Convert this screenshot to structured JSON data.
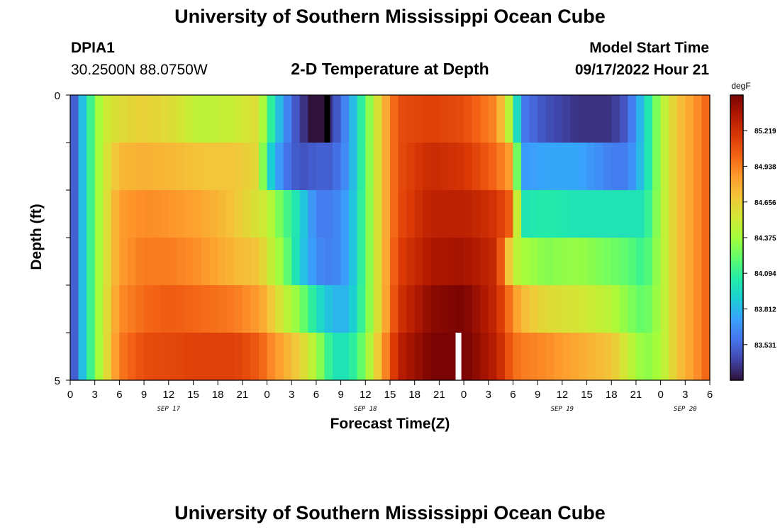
{
  "title": "University of Southern Mississippi Ocean Cube",
  "title_bottom": "University of Southern Mississippi Ocean Cube",
  "station": {
    "id": "DPIA1",
    "coords": "30.2500N  88.0750W"
  },
  "model": {
    "label": "Model Start Time",
    "time": "09/17/2022 Hour 21"
  },
  "chart_data": {
    "type": "heatmap",
    "title": "2-D Temperature at Depth",
    "xlabel": "Forecast Time(Z)",
    "ylabel": "Depth (ft)",
    "x_start_hour": 0,
    "x_end_hour": 78,
    "x_hour_step": 1,
    "ylim": [
      0,
      5
    ],
    "y_ticks": [
      "0",
      "5"
    ],
    "y_tick_values": [
      0,
      5
    ],
    "x_tick_labels": [
      "0",
      "3",
      "6",
      "9",
      "12",
      "15",
      "18",
      "21",
      "0",
      "3",
      "6",
      "9",
      "12",
      "15",
      "18",
      "21",
      "0",
      "3",
      "6",
      "9",
      "12",
      "15",
      "18",
      "21",
      "0",
      "3",
      "6"
    ],
    "day_labels": [
      {
        "label": "SEP 17",
        "hour": 12
      },
      {
        "label": "SEP 18",
        "hour": 36
      },
      {
        "label": "SEP 19",
        "hour": 60
      },
      {
        "label": "SEP 20",
        "hour": 75
      }
    ],
    "depth_levels": [
      0,
      1,
      2,
      3,
      4,
      5
    ],
    "profiles": [
      {
        "hour": 0,
        "temps": [
          83.33,
          83.33,
          83.33,
          83.33,
          83.33,
          83.33
        ]
      },
      {
        "hour": 2,
        "temps": [
          84.0,
          84.0,
          84.0,
          84.0,
          84.0,
          84.0
        ]
      },
      {
        "hour": 4,
        "temps": [
          84.5,
          84.5,
          84.5,
          84.5,
          84.5,
          84.5
        ]
      },
      {
        "hour": 6,
        "temps": [
          84.6,
          84.75,
          84.85,
          84.85,
          84.9,
          84.95
        ]
      },
      {
        "hour": 9,
        "temps": [
          84.65,
          84.78,
          84.9,
          84.95,
          85.0,
          85.1
        ]
      },
      {
        "hour": 12,
        "temps": [
          84.6,
          84.75,
          84.88,
          84.95,
          85.05,
          85.12
        ]
      },
      {
        "hour": 16,
        "temps": [
          84.45,
          84.7,
          84.82,
          84.88,
          85.0,
          85.15
        ]
      },
      {
        "hour": 20,
        "temps": [
          84.5,
          84.7,
          84.7,
          84.75,
          84.95,
          85.15
        ]
      },
      {
        "hour": 23,
        "temps": [
          84.6,
          84.6,
          84.55,
          84.7,
          84.85,
          85.05
        ]
      },
      {
        "hour": 24,
        "temps": [
          84.2,
          84.0,
          84.5,
          84.55,
          84.75,
          84.95
        ]
      },
      {
        "hour": 26,
        "temps": [
          83.7,
          83.6,
          84.2,
          84.3,
          84.5,
          84.8
        ]
      },
      {
        "hour": 28,
        "temps": [
          83.4,
          83.45,
          83.95,
          83.9,
          84.3,
          84.65
        ]
      },
      {
        "hour": 30,
        "temps": [
          83.2,
          83.5,
          83.6,
          83.65,
          84.0,
          84.4
        ]
      },
      {
        "hour": 32,
        "temps": [
          83.4,
          83.5,
          83.6,
          83.6,
          83.8,
          84.0
        ]
      },
      {
        "hour": 34,
        "temps": [
          83.7,
          83.7,
          83.75,
          83.75,
          83.8,
          84.0
        ]
      },
      {
        "hour": 36,
        "temps": [
          84.2,
          84.2,
          84.2,
          84.2,
          84.2,
          84.3
        ]
      },
      {
        "hour": 38,
        "temps": [
          84.7,
          84.7,
          84.7,
          84.7,
          84.7,
          84.8
        ]
      },
      {
        "hour": 40,
        "temps": [
          85.1,
          85.1,
          85.1,
          85.15,
          85.2,
          85.3
        ]
      },
      {
        "hour": 44,
        "temps": [
          85.15,
          85.25,
          85.3,
          85.35,
          85.45,
          85.5
        ]
      },
      {
        "hour": 48,
        "temps": [
          85.1,
          85.2,
          85.3,
          85.38,
          85.5,
          85.52
        ]
      },
      {
        "hour": 52,
        "temps": [
          84.9,
          85.0,
          85.2,
          85.25,
          85.25,
          85.3
        ]
      },
      {
        "hour": 54,
        "temps": [
          84.3,
          84.8,
          85.0,
          84.5,
          84.9,
          85.0
        ]
      },
      {
        "hour": 55,
        "temps": [
          83.6,
          83.7,
          84.0,
          84.4,
          84.75,
          84.95
        ]
      },
      {
        "hour": 58,
        "temps": [
          83.45,
          83.75,
          84.05,
          84.3,
          84.6,
          84.9
        ]
      },
      {
        "hour": 62,
        "temps": [
          83.35,
          83.75,
          84.0,
          84.35,
          84.55,
          84.8
        ]
      },
      {
        "hour": 66,
        "temps": [
          83.35,
          83.6,
          84.0,
          84.25,
          84.45,
          84.7
        ]
      },
      {
        "hour": 68,
        "temps": [
          83.5,
          83.6,
          84.0,
          84.2,
          84.3,
          84.5
        ]
      },
      {
        "hour": 70,
        "temps": [
          83.9,
          83.9,
          84.0,
          84.1,
          84.2,
          84.3
        ]
      },
      {
        "hour": 72,
        "temps": [
          84.4,
          84.4,
          84.4,
          84.4,
          84.4,
          84.4
        ]
      },
      {
        "hour": 74,
        "temps": [
          84.7,
          84.7,
          84.7,
          84.7,
          84.7,
          84.7
        ]
      },
      {
        "hour": 76,
        "temps": [
          84.85,
          84.85,
          84.85,
          84.85,
          84.85,
          84.85
        ]
      },
      {
        "hour": 78,
        "temps": [
          85.05,
          85.05,
          85.05,
          85.05,
          85.05,
          85.05
        ]
      }
    ],
    "markers": [
      {
        "hour": 31,
        "level": 0,
        "color": "#000000"
      },
      {
        "hour": 47,
        "level": 5,
        "color": "#ffffff"
      }
    ],
    "colorbar": {
      "unit": "degF",
      "min": 83.25,
      "max": 85.5,
      "ticks": [
        "85.219",
        "84.938",
        "84.656",
        "84.375",
        "84.094",
        "83.812",
        "83.531"
      ],
      "stops": [
        "#30123b",
        "#4145ab",
        "#4675ed",
        "#39a2fc",
        "#1bcfd4",
        "#24eca6",
        "#61fc6c",
        "#a4fc3b",
        "#d1e834",
        "#f3c63a",
        "#fe9b2d",
        "#f36315",
        "#d93806",
        "#b11901",
        "#7a0403"
      ]
    }
  }
}
